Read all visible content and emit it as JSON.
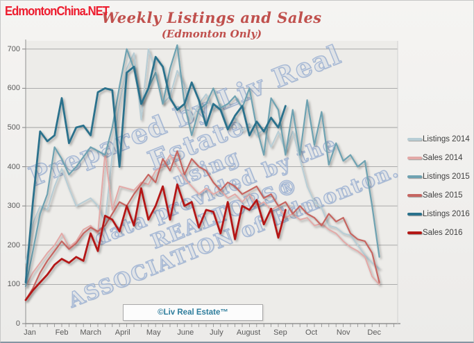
{
  "branding": {
    "site": "EdmontonChina.NET",
    "color": "#ed1c2e"
  },
  "watermark": {
    "lines": [
      "Prepared by Liv Real Estate",
      "using",
      "data provided by the",
      "REALTORS®",
      "ASSOCIATION of Edmonton."
    ]
  },
  "footer_box": {
    "label": "©Liv Real Estate™"
  },
  "chart_data": {
    "type": "line",
    "title": "Weekly Listings and Sales",
    "subtitle": "(Edmonton Only)",
    "xlabel": "",
    "ylabel": "",
    "x_unit": "week of year",
    "ylim": [
      0,
      700
    ],
    "yticks": [
      0,
      100,
      200,
      300,
      400,
      500,
      600,
      700
    ],
    "grid": true,
    "legend_position": "right",
    "months": [
      "Jan",
      "Feb",
      "March",
      "April",
      "May",
      "June",
      "July",
      "August",
      "Sep",
      "Oct",
      "Nov",
      "Dec"
    ],
    "month_start_weeks": [
      0,
      4.43,
      8.43,
      12.86,
      17.14,
      21.57,
      25.86,
      30.29,
      34.71,
      39.0,
      43.43,
      47.71
    ],
    "series": [
      {
        "name": "Listings 2014",
        "color": "#b7cdd5",
        "line_width": 2,
        "values": [
          155,
          255,
          300,
          290,
          350,
          395,
          345,
          300,
          310,
          320,
          300,
          260,
          430,
          560,
          650,
          690,
          520,
          700,
          645,
          560,
          580,
          645,
          610,
          520,
          560,
          585,
          545,
          560,
          500,
          525,
          490,
          510,
          480,
          495,
          450,
          490,
          440,
          490,
          420,
          350,
          310,
          295,
          250,
          245,
          230,
          225,
          200,
          175,
          155,
          140
        ]
      },
      {
        "name": "Sales 2014",
        "color": "#e3a9a7",
        "line_width": 2,
        "values": [
          95,
          130,
          155,
          180,
          200,
          230,
          195,
          210,
          240,
          250,
          230,
          435,
          290,
          350,
          345,
          340,
          360,
          355,
          390,
          400,
          430,
          400,
          370,
          350,
          330,
          345,
          330,
          340,
          320,
          330,
          310,
          330,
          300,
          310,
          290,
          300,
          270,
          280,
          265,
          270,
          250,
          255,
          240,
          230,
          210,
          195,
          185,
          170,
          120,
          100
        ]
      },
      {
        "name": "Listings 2015",
        "color": "#6ea2b1",
        "line_width": 2.2,
        "values": [
          95,
          185,
          280,
          330,
          450,
          420,
          380,
          400,
          425,
          450,
          440,
          430,
          500,
          605,
          700,
          650,
          560,
          600,
          640,
          560,
          650,
          710,
          560,
          480,
          545,
          560,
          600,
          550,
          560,
          580,
          550,
          600,
          500,
          430,
          575,
          545,
          430,
          545,
          430,
          570,
          455,
          540,
          405,
          460,
          415,
          430,
          400,
          415,
          300,
          170
        ]
      },
      {
        "name": "Sales 2015",
        "color": "#c66561",
        "line_width": 2.2,
        "values": [
          60,
          90,
          130,
          160,
          185,
          210,
          190,
          205,
          230,
          245,
          235,
          250,
          280,
          310,
          300,
          330,
          355,
          380,
          360,
          420,
          390,
          440,
          380,
          420,
          400,
          390,
          360,
          340,
          360,
          350,
          330,
          340,
          350,
          320,
          330,
          300,
          310,
          280,
          300,
          280,
          270,
          250,
          280,
          260,
          270,
          230,
          215,
          210,
          180,
          105
        ]
      },
      {
        "name": "Listings 2016",
        "color": "#29718c",
        "line_width": 2.8,
        "values": [
          105,
          310,
          490,
          465,
          480,
          575,
          460,
          500,
          505,
          480,
          590,
          600,
          595,
          400,
          640,
          655,
          560,
          600,
          680,
          655,
          575,
          545,
          560,
          615,
          570,
          505,
          560,
          545,
          495,
          530,
          555,
          480,
          515,
          490,
          525,
          500,
          555
        ]
      },
      {
        "name": "Sales 2016",
        "color": "#b41917",
        "line_width": 2.8,
        "values": [
          60,
          85,
          105,
          125,
          150,
          165,
          155,
          170,
          160,
          230,
          185,
          275,
          265,
          235,
          300,
          250,
          345,
          265,
          300,
          350,
          265,
          355,
          300,
          310,
          245,
          290,
          285,
          230,
          310,
          215,
          300,
          290,
          315,
          253,
          293,
          219,
          290
        ]
      }
    ]
  }
}
